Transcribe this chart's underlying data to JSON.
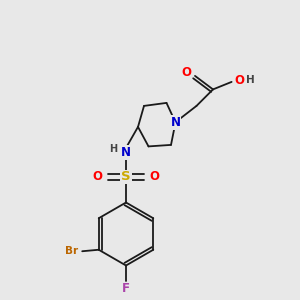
{
  "bg_color": "#e8e8e8",
  "atom_colors": {
    "C": "#000000",
    "N": "#0000cc",
    "O": "#ff0000",
    "S": "#ccaa00",
    "Br": "#bb6600",
    "F": "#aa44aa",
    "H": "#444444"
  },
  "bond_color": "#1a1a1a",
  "lw": 1.3
}
